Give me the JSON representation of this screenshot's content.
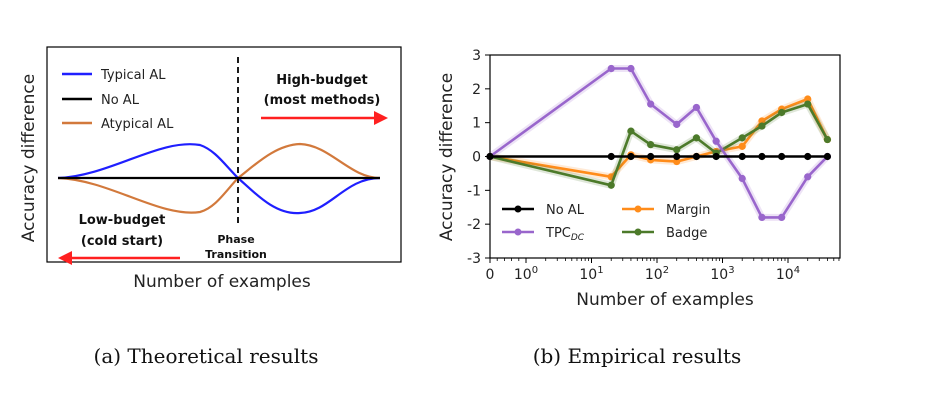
{
  "figure": {
    "caption_a": "(a) Theoretical results",
    "caption_b": "(b) Empirical results"
  },
  "chart_data": [
    {
      "type": "line",
      "xlabel": "Number of examples",
      "ylabel": "Accuracy difference",
      "legend": [
        {
          "label": "Typical AL",
          "color": "#1f1fff"
        },
        {
          "label": "No AL",
          "color": "#000000"
        },
        {
          "label": "Atypical AL",
          "color": "#d2793c"
        }
      ],
      "legend_position": "top-left",
      "grid": false,
      "annotations": {
        "high_budget_line1": "High-budget",
        "high_budget_line2": "(most methods)",
        "low_budget_line1": "Low-budget",
        "low_budget_line2": "(cold start)",
        "phase_line1": "Phase",
        "phase_line2": "Transition"
      },
      "arrow_color": "#ff2020"
    },
    {
      "type": "line",
      "xlabel": "Number of examples",
      "ylabel": "Accuracy difference",
      "x_scale": "symlog",
      "xlim": [
        0,
        40000
      ],
      "ylim": [
        -3,
        3
      ],
      "x_ticks": [
        {
          "value": 0,
          "label": "0"
        },
        {
          "value": 1,
          "label": "10",
          "exp": "0"
        },
        {
          "value": 10,
          "label": "10",
          "exp": "1"
        },
        {
          "value": 100,
          "label": "10",
          "exp": "2"
        },
        {
          "value": 1000,
          "label": "10",
          "exp": "3"
        },
        {
          "value": 10000,
          "label": "10",
          "exp": "4"
        }
      ],
      "y_ticks": [
        -3,
        -2,
        -1,
        0,
        1,
        2,
        3
      ],
      "legend_position": "lower-left",
      "grid": false,
      "series": [
        {
          "name": "Margin",
          "color": "#ff8c1a",
          "x": [
            0,
            20,
            40,
            80,
            200,
            400,
            800,
            2000,
            4000,
            8000,
            20000,
            40000
          ],
          "y": [
            0,
            -0.6,
            0.05,
            -0.1,
            -0.15,
            0.0,
            0.15,
            0.3,
            1.05,
            1.4,
            1.7,
            0.5
          ]
        },
        {
          "name": "Badge",
          "color": "#4c7a2a",
          "x": [
            0,
            20,
            40,
            80,
            200,
            400,
            800,
            2000,
            4000,
            8000,
            20000,
            40000
          ],
          "y": [
            0,
            -0.85,
            0.75,
            0.35,
            0.2,
            0.55,
            0.1,
            0.55,
            0.9,
            1.3,
            1.55,
            0.5
          ]
        },
        {
          "name": "TPC",
          "name_sub": "DC",
          "color": "#9966cc",
          "x": [
            0,
            20,
            40,
            80,
            200,
            400,
            800,
            2000,
            4000,
            8000,
            20000,
            40000
          ],
          "y": [
            0,
            2.6,
            2.6,
            1.55,
            0.95,
            1.45,
            0.45,
            -0.65,
            -1.8,
            -1.8,
            -0.6,
            0.0
          ]
        },
        {
          "name": "No AL",
          "color": "#000000",
          "x": [
            0,
            20,
            40,
            80,
            200,
            400,
            800,
            2000,
            4000,
            8000,
            20000,
            40000
          ],
          "y": [
            0,
            0,
            0,
            0,
            0,
            0,
            0,
            0,
            0,
            0,
            0,
            0
          ]
        }
      ]
    }
  ]
}
